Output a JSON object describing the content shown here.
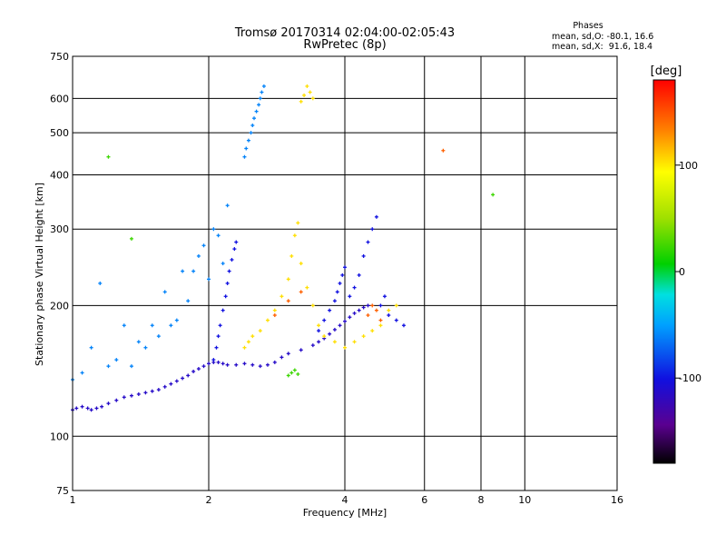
{
  "chart_data": {
    "type": "scatter",
    "title": "Tromsø 20170314 02:04:00-02:05:43",
    "subtitle": "RwPretec (8p)",
    "xlabel": "Frequency [MHz]",
    "ylabel": "Stationary phase Virtual Height [km]",
    "x_scale": "log",
    "y_scale": "log",
    "xlim": [
      1,
      16
    ],
    "ylim": [
      75,
      750
    ],
    "x_ticks": [
      1,
      2,
      4,
      6,
      8,
      10,
      16
    ],
    "y_ticks": [
      75,
      100,
      200,
      300,
      400,
      500,
      600,
      750
    ],
    "grid": true,
    "phases_info": {
      "title": "Phases",
      "o_line": "mean, sd,O: -80.1, 16.6",
      "x_line": "mean, sd,X:  91.6, 18.4"
    },
    "colorbar": {
      "label": "[deg]",
      "range": [
        -180,
        180
      ],
      "ticks": [
        -100,
        0,
        100
      ],
      "colormap": "rainbow"
    },
    "colors": {
      "phase_m150": "#3a0080",
      "phase_m100": "#1010e0",
      "phase_m50": "#00b0ff",
      "phase_0": "#10d020",
      "phase_100": "#ffe000",
      "phase_150": "#ff6000",
      "phase_180": "#ff0000"
    },
    "series": [
      {
        "phase": -115,
        "comment": "O-mode low trace",
        "x": [
          1.0,
          1.02,
          1.05,
          1.08,
          1.1,
          1.13,
          1.16,
          1.2,
          1.25,
          1.3,
          1.35,
          1.4,
          1.45,
          1.5,
          1.55,
          1.6,
          1.65,
          1.7,
          1.75,
          1.8,
          1.85,
          1.9,
          1.95,
          2.0,
          2.05,
          2.1,
          2.15,
          2.2,
          2.3,
          2.4,
          2.5,
          2.6,
          2.7,
          2.8,
          2.9,
          3.0,
          3.2,
          3.4,
          3.5,
          3.6,
          3.7,
          3.8,
          3.9,
          4.0,
          4.1,
          4.2,
          4.3,
          4.4,
          4.5
        ],
        "y": [
          115,
          116,
          117,
          116,
          115,
          116,
          117,
          119,
          121,
          123,
          124,
          125,
          126,
          127,
          128,
          130,
          132,
          134,
          136,
          138,
          141,
          143,
          145,
          147,
          148,
          148,
          147,
          146,
          146,
          147,
          146,
          145,
          146,
          148,
          152,
          155,
          158,
          162,
          165,
          168,
          172,
          176,
          180,
          184,
          188,
          192,
          195,
          198,
          200
        ]
      },
      {
        "phase": -100,
        "comment": "O-mode upper branches",
        "x": [
          2.05,
          2.08,
          2.1,
          2.12,
          2.15,
          2.18,
          2.2,
          2.22,
          2.25,
          2.28,
          2.3,
          3.5,
          3.6,
          3.7,
          3.8,
          3.85,
          3.9,
          3.95,
          4.0,
          4.1,
          4.2,
          4.3,
          4.4,
          4.5,
          4.6,
          4.7,
          4.8,
          4.9,
          5.0,
          5.2,
          5.4
        ],
        "y": [
          150,
          160,
          170,
          180,
          195,
          210,
          225,
          240,
          255,
          270,
          280,
          175,
          185,
          195,
          205,
          215,
          225,
          235,
          245,
          210,
          220,
          235,
          260,
          280,
          300,
          320,
          200,
          210,
          190,
          185,
          180
        ]
      },
      {
        "phase": -60,
        "comment": "spread echoes and high-altitude trace",
        "x": [
          1.0,
          1.05,
          1.1,
          1.15,
          1.2,
          1.25,
          1.3,
          1.35,
          1.4,
          1.45,
          1.5,
          1.55,
          1.6,
          1.65,
          1.7,
          1.75,
          1.8,
          1.85,
          1.9,
          1.95,
          2.0,
          2.05,
          2.1,
          2.15,
          2.2,
          2.4,
          2.42,
          2.45,
          2.48,
          2.5,
          2.52,
          2.55,
          2.58,
          2.6,
          2.62,
          2.65
        ],
        "y": [
          135,
          140,
          160,
          225,
          145,
          150,
          180,
          145,
          165,
          160,
          180,
          170,
          215,
          180,
          185,
          240,
          205,
          240,
          260,
          275,
          230,
          300,
          290,
          250,
          340,
          440,
          460,
          480,
          500,
          520,
          540,
          560,
          580,
          600,
          620,
          640
        ]
      },
      {
        "phase": 25,
        "comment": "weak returns",
        "x": [
          1.2,
          1.35,
          3.0,
          3.05,
          3.1,
          3.15,
          8.5
        ],
        "y": [
          440,
          285,
          138,
          140,
          142,
          139,
          360
        ]
      },
      {
        "phase": 110,
        "comment": "X-mode trace",
        "x": [
          2.4,
          2.45,
          2.5,
          2.6,
          2.7,
          2.8,
          2.9,
          3.0,
          3.05,
          3.1,
          3.15,
          3.2,
          3.3,
          3.4,
          3.5,
          3.6,
          3.8,
          4.0,
          4.2,
          4.4,
          4.6,
          4.8,
          5.0,
          5.2,
          3.2,
          3.25,
          3.3,
          3.35,
          3.4
        ],
        "y": [
          160,
          165,
          170,
          175,
          185,
          195,
          210,
          230,
          260,
          290,
          310,
          250,
          220,
          200,
          180,
          170,
          165,
          160,
          165,
          170,
          175,
          180,
          195,
          200,
          590,
          610,
          640,
          620,
          600
        ]
      },
      {
        "phase": 150,
        "comment": "X-mode high phase",
        "x": [
          2.8,
          3.0,
          3.2,
          4.5,
          4.6,
          4.7,
          4.8,
          6.6
        ],
        "y": [
          190,
          205,
          215,
          190,
          200,
          195,
          185,
          455
        ]
      }
    ]
  }
}
